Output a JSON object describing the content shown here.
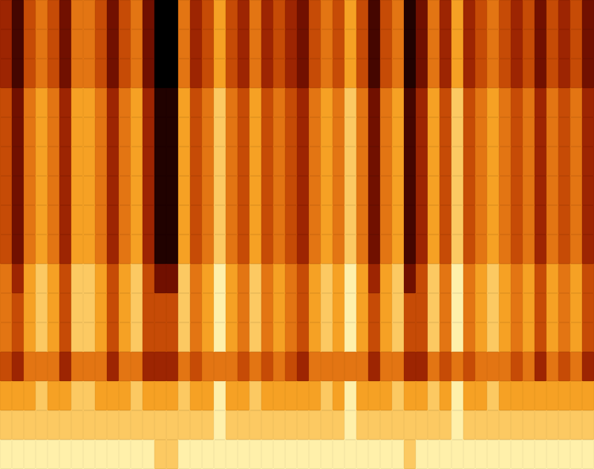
{
  "chart_data": {
    "type": "heatmap",
    "tick_labels": false,
    "grid": false,
    "cells": [
      [
        4,
        2,
        5,
        6,
        5,
        3,
        6,
        6,
        5,
        3,
        5,
        6,
        3,
        0,
        0,
        6,
        4,
        5,
        7,
        5,
        4,
        6,
        4,
        5,
        4,
        3,
        5,
        6,
        5,
        7,
        5,
        2,
        5,
        6,
        1,
        3,
        6,
        4,
        7,
        4,
        5,
        6,
        5,
        4,
        5,
        3,
        5,
        4,
        5,
        3
      ],
      [
        4,
        2,
        5,
        6,
        5,
        3,
        6,
        6,
        5,
        3,
        5,
        6,
        3,
        0,
        0,
        6,
        4,
        5,
        7,
        5,
        4,
        6,
        4,
        5,
        4,
        3,
        5,
        6,
        5,
        7,
        5,
        2,
        5,
        6,
        1,
        3,
        6,
        4,
        7,
        4,
        5,
        6,
        5,
        4,
        5,
        3,
        5,
        4,
        5,
        3
      ],
      [
        4,
        2,
        5,
        6,
        5,
        3,
        6,
        6,
        5,
        3,
        5,
        6,
        3,
        0,
        0,
        6,
        4,
        5,
        7,
        5,
        4,
        6,
        4,
        5,
        4,
        3,
        5,
        6,
        5,
        7,
        5,
        2,
        5,
        6,
        1,
        3,
        6,
        4,
        7,
        4,
        5,
        6,
        5,
        4,
        5,
        3,
        5,
        4,
        5,
        3
      ],
      [
        5,
        3,
        6,
        7,
        6,
        4,
        7,
        7,
        6,
        4,
        6,
        7,
        4,
        1,
        1,
        7,
        5,
        6,
        8,
        6,
        5,
        7,
        5,
        6,
        5,
        4,
        6,
        7,
        6,
        8,
        6,
        3,
        6,
        7,
        2,
        4,
        7,
        5,
        8,
        5,
        6,
        7,
        6,
        5,
        6,
        4,
        6,
        5,
        6,
        4
      ],
      [
        5,
        3,
        6,
        7,
        6,
        4,
        7,
        7,
        6,
        4,
        6,
        7,
        4,
        1,
        1,
        7,
        5,
        6,
        8,
        6,
        5,
        7,
        5,
        6,
        5,
        4,
        6,
        7,
        6,
        8,
        6,
        3,
        6,
        7,
        2,
        4,
        7,
        5,
        8,
        5,
        6,
        7,
        6,
        5,
        6,
        4,
        6,
        5,
        6,
        4
      ],
      [
        5,
        3,
        6,
        7,
        6,
        4,
        7,
        7,
        6,
        4,
        6,
        7,
        4,
        1,
        1,
        7,
        5,
        6,
        8,
        6,
        5,
        7,
        5,
        6,
        5,
        4,
        6,
        7,
        6,
        8,
        6,
        3,
        6,
        7,
        2,
        4,
        7,
        5,
        8,
        5,
        6,
        7,
        6,
        5,
        6,
        4,
        6,
        5,
        6,
        4
      ],
      [
        5,
        3,
        6,
        7,
        6,
        4,
        7,
        7,
        6,
        4,
        6,
        7,
        4,
        1,
        1,
        7,
        5,
        6,
        8,
        6,
        5,
        7,
        5,
        6,
        5,
        4,
        6,
        7,
        6,
        8,
        6,
        3,
        6,
        7,
        2,
        4,
        7,
        5,
        8,
        5,
        6,
        7,
        6,
        5,
        6,
        4,
        6,
        5,
        6,
        4
      ],
      [
        5,
        3,
        6,
        7,
        6,
        4,
        7,
        7,
        6,
        4,
        6,
        7,
        4,
        1,
        1,
        7,
        5,
        6,
        8,
        6,
        5,
        7,
        5,
        6,
        5,
        4,
        6,
        7,
        6,
        8,
        6,
        3,
        6,
        7,
        2,
        4,
        7,
        5,
        8,
        5,
        6,
        7,
        6,
        5,
        6,
        4,
        6,
        5,
        6,
        4
      ],
      [
        5,
        3,
        6,
        7,
        6,
        4,
        7,
        7,
        6,
        4,
        6,
        7,
        4,
        1,
        1,
        7,
        5,
        6,
        8,
        6,
        5,
        7,
        5,
        6,
        5,
        4,
        6,
        7,
        6,
        8,
        6,
        3,
        6,
        7,
        2,
        4,
        7,
        5,
        8,
        5,
        6,
        7,
        6,
        5,
        6,
        4,
        6,
        5,
        6,
        4
      ],
      [
        6,
        4,
        7,
        8,
        7,
        5,
        8,
        8,
        7,
        5,
        7,
        8,
        5,
        3,
        3,
        8,
        6,
        7,
        9,
        7,
        6,
        8,
        6,
        7,
        6,
        5,
        7,
        8,
        7,
        9,
        7,
        4,
        7,
        8,
        3,
        5,
        8,
        6,
        9,
        6,
        7,
        8,
        7,
        6,
        7,
        5,
        7,
        6,
        7,
        5
      ],
      [
        6,
        5,
        7,
        8,
        7,
        5,
        8,
        8,
        7,
        5,
        7,
        8,
        5,
        5,
        5,
        8,
        6,
        7,
        9,
        7,
        6,
        8,
        6,
        7,
        6,
        5,
        7,
        8,
        7,
        9,
        7,
        5,
        7,
        8,
        5,
        5,
        8,
        6,
        9,
        6,
        7,
        8,
        7,
        6,
        7,
        5,
        7,
        6,
        7,
        5
      ],
      [
        6,
        5,
        7,
        8,
        7,
        5,
        8,
        8,
        7,
        5,
        7,
        8,
        5,
        5,
        5,
        8,
        6,
        7,
        9,
        7,
        6,
        8,
        6,
        7,
        6,
        5,
        7,
        8,
        7,
        9,
        7,
        5,
        7,
        8,
        5,
        5,
        8,
        6,
        9,
        6,
        7,
        8,
        7,
        6,
        7,
        5,
        7,
        6,
        7,
        5
      ],
      [
        5,
        4,
        6,
        6,
        6,
        4,
        6,
        6,
        6,
        4,
        6,
        6,
        4,
        4,
        4,
        6,
        5,
        6,
        6,
        6,
        5,
        6,
        5,
        6,
        5,
        4,
        6,
        6,
        6,
        6,
        6,
        4,
        6,
        6,
        4,
        4,
        6,
        5,
        6,
        5,
        6,
        6,
        6,
        5,
        6,
        4,
        6,
        5,
        6,
        4
      ],
      [
        7,
        7,
        7,
        8,
        7,
        7,
        8,
        8,
        7,
        7,
        7,
        8,
        7,
        7,
        7,
        8,
        7,
        7,
        9,
        7,
        7,
        8,
        7,
        7,
        7,
        7,
        7,
        8,
        7,
        9,
        7,
        7,
        7,
        8,
        7,
        7,
        8,
        7,
        9,
        7,
        7,
        8,
        7,
        7,
        7,
        7,
        7,
        7,
        7,
        7
      ],
      [
        8,
        8,
        8,
        8,
        8,
        8,
        8,
        8,
        8,
        8,
        8,
        8,
        8,
        8,
        8,
        8,
        8,
        8,
        9,
        8,
        8,
        8,
        8,
        8,
        8,
        8,
        8,
        8,
        8,
        9,
        8,
        8,
        8,
        8,
        8,
        8,
        8,
        8,
        9,
        8,
        8,
        8,
        8,
        8,
        8,
        8,
        8,
        8,
        8,
        8
      ],
      [
        9,
        9,
        9,
        9,
        9,
        9,
        9,
        9,
        9,
        9,
        9,
        9,
        9,
        8,
        8,
        9,
        9,
        9,
        9,
        9,
        9,
        9,
        9,
        9,
        9,
        9,
        9,
        9,
        9,
        9,
        9,
        9,
        9,
        9,
        8,
        9,
        9,
        9,
        9,
        9,
        9,
        9,
        9,
        9,
        9,
        9,
        9,
        9,
        9,
        9
      ]
    ]
  }
}
